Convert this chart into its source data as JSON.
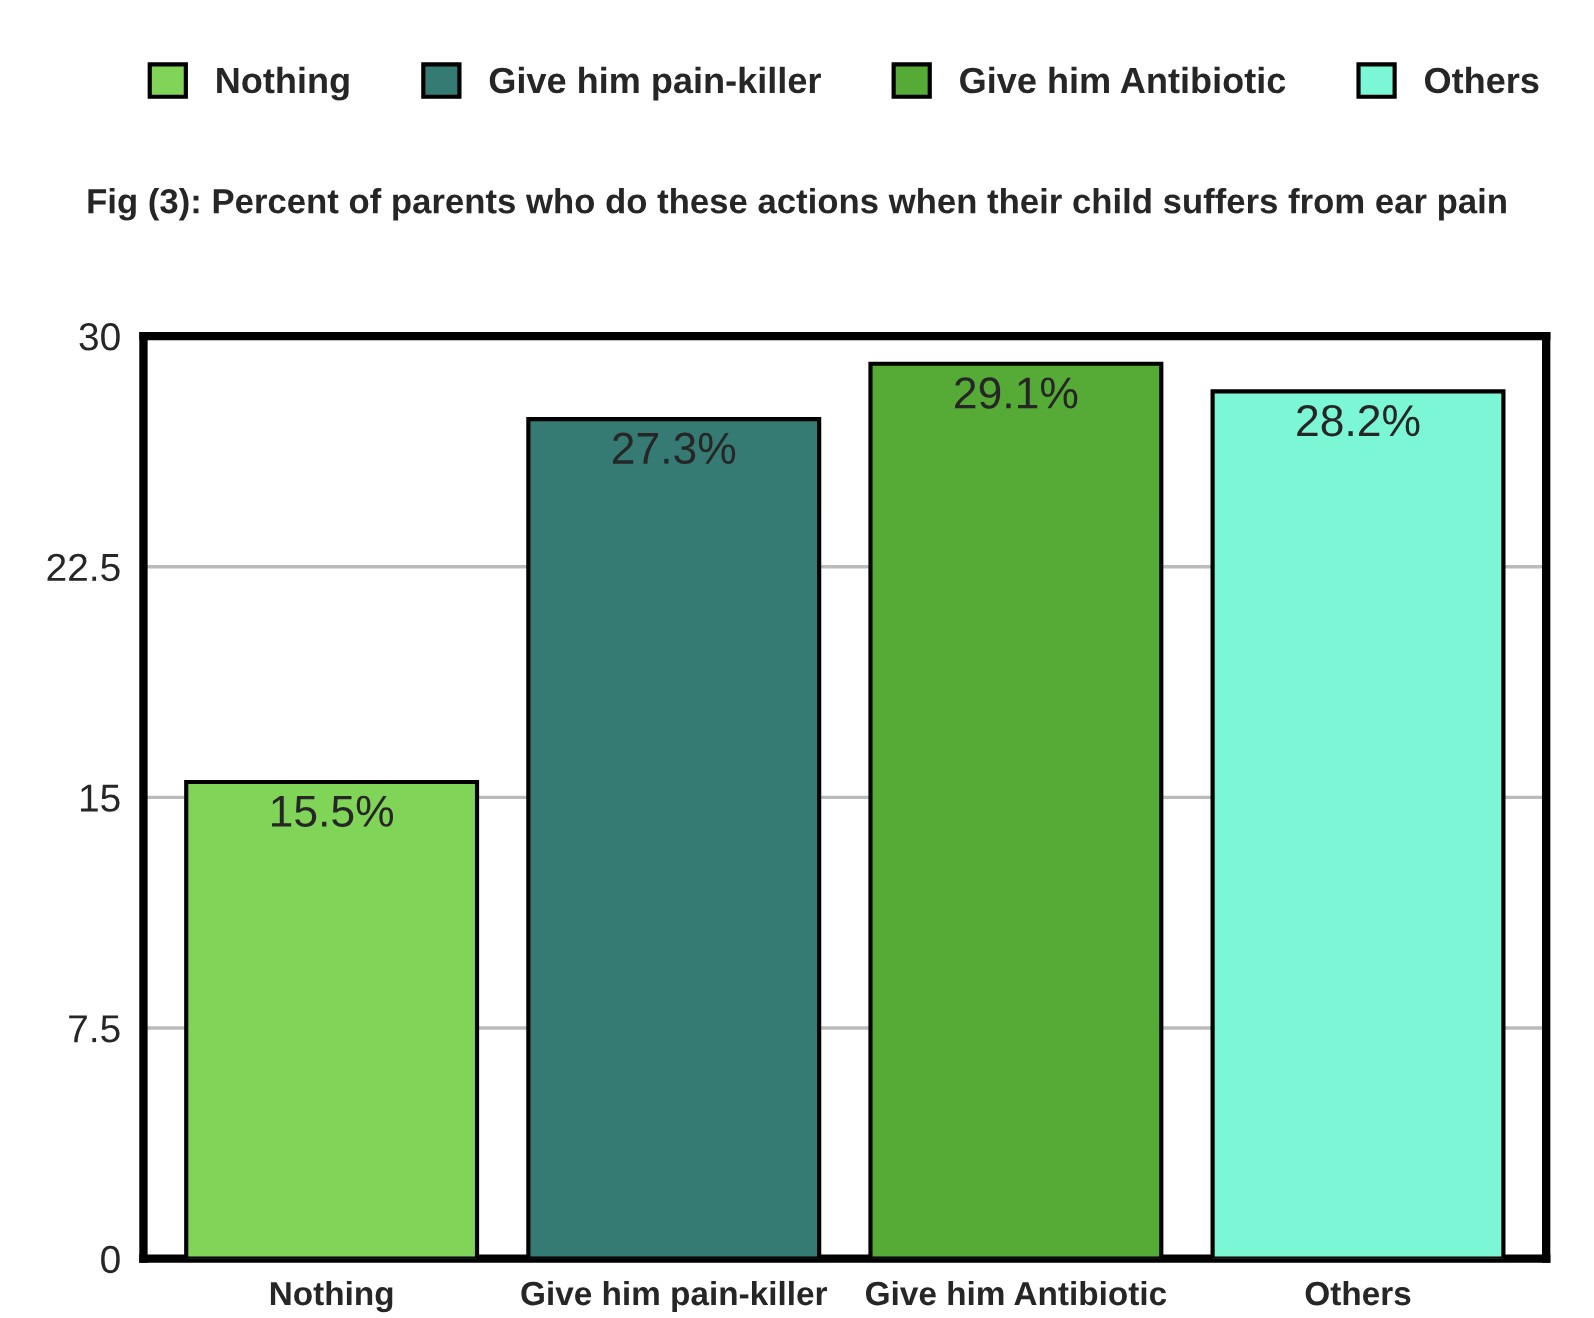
{
  "chart_data": {
    "type": "bar",
    "title": "Fig (3): Percent of parents who do these actions when their child suffers from ear pain",
    "categories": [
      "Nothing",
      "Give him pain-killer",
      "Give him Antibiotic",
      "Others"
    ],
    "series": [
      {
        "name": "Nothing",
        "color": "#80d458",
        "values": [
          15.5,
          null,
          null,
          null
        ],
        "value_labels": [
          "15.5%",
          null,
          null,
          null
        ]
      },
      {
        "name": "Give him pain-killer",
        "color": "#367a74",
        "values": [
          null,
          27.3,
          null,
          null
        ],
        "value_labels": [
          null,
          "27.3%",
          null,
          null
        ]
      },
      {
        "name": "Give him Antibiotic",
        "color": "#55ab35",
        "values": [
          null,
          null,
          29.1,
          null
        ],
        "value_labels": [
          null,
          null,
          "29.1%",
          null
        ]
      },
      {
        "name": "Others",
        "color": "#7cf7d6",
        "values": [
          null,
          null,
          null,
          28.2
        ],
        "value_labels": [
          null,
          null,
          null,
          "28.2%"
        ]
      }
    ],
    "ylim": [
      0,
      30
    ],
    "yticks": [
      0,
      7.5,
      15,
      22.5,
      30
    ],
    "grid": "y",
    "legend": "top"
  }
}
